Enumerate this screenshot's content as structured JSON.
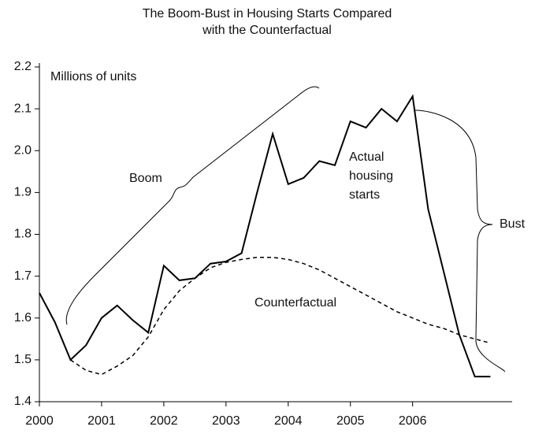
{
  "chart_data": {
    "type": "line",
    "title": [
      "The Boom-Bust in Housing Starts Compared",
      "with the Counterfactual"
    ],
    "y_label": "Millions of units",
    "annotations": {
      "boom": "Boom",
      "bust": "Bust",
      "actual": [
        "Actual",
        "housing",
        "starts"
      ],
      "counterfactual": "Counterfactual"
    },
    "x": [
      2000,
      2000.25,
      2000.5,
      2000.75,
      2001,
      2001.25,
      2001.5,
      2001.75,
      2002,
      2002.25,
      2002.5,
      2002.75,
      2003,
      2003.25,
      2003.5,
      2003.75,
      2004,
      2004.25,
      2004.5,
      2004.75,
      2005,
      2005.25,
      2005.5,
      2005.75,
      2006,
      2006.25,
      2006.5,
      2006.75,
      2007,
      2007.25
    ],
    "series": [
      {
        "name": "Actual housing starts",
        "color": "#000000",
        "dash": false,
        "values": [
          1.66,
          1.59,
          1.5,
          1.535,
          1.6,
          1.63,
          1.595,
          1.565,
          1.725,
          1.69,
          1.695,
          1.73,
          1.735,
          1.755,
          1.9,
          2.04,
          1.92,
          1.935,
          1.975,
          1.965,
          2.07,
          2.055,
          2.1,
          2.07,
          2.13,
          1.86,
          1.71,
          1.56,
          1.46,
          1.46
        ]
      },
      {
        "name": "Counterfactual",
        "color": "#000000",
        "dash": true,
        "values": [
          null,
          null,
          1.5,
          1.475,
          1.465,
          1.485,
          1.51,
          1.555,
          1.62,
          1.665,
          1.695,
          1.72,
          1.733,
          1.74,
          1.745,
          1.745,
          1.74,
          1.73,
          1.715,
          1.695,
          1.675,
          1.655,
          1.635,
          1.615,
          1.6,
          1.585,
          1.575,
          1.56,
          1.55,
          1.54
        ]
      }
    ],
    "xlim": [
      2000,
      2007.6
    ],
    "xticks": [
      2000,
      2001,
      2002,
      2003,
      2004,
      2005,
      2006
    ],
    "ylim": [
      1.4,
      2.2
    ],
    "yticks": [
      1.4,
      1.5,
      1.6,
      1.7,
      1.8,
      1.9,
      {
        "value": 2,
        "label": "2.0"
      },
      2.1,
      2.2
    ],
    "grid": false
  }
}
